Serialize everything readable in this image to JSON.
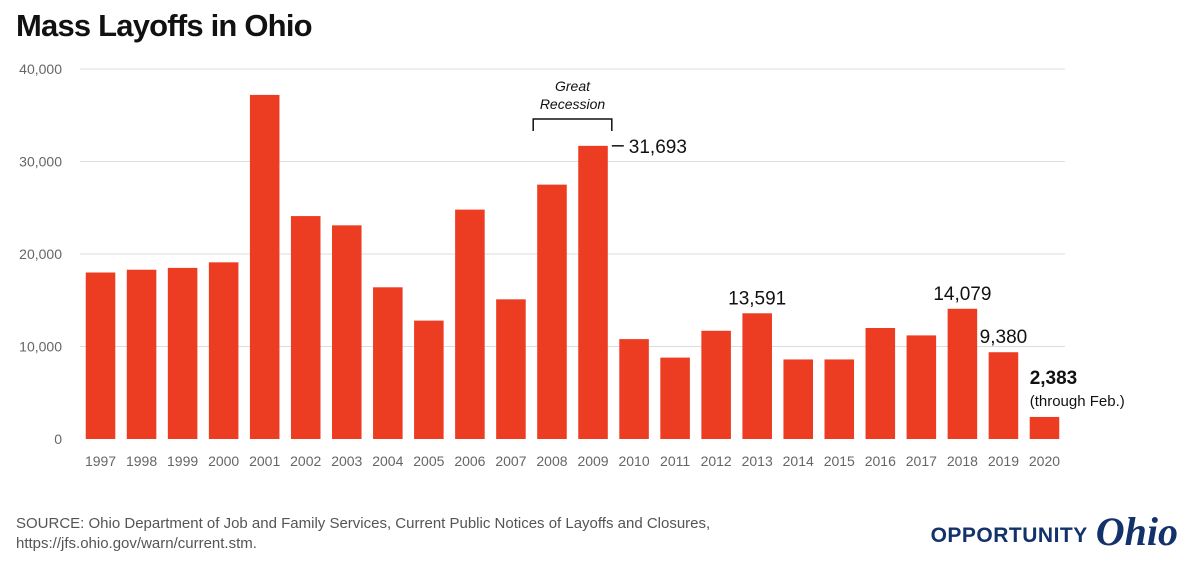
{
  "chart_data": {
    "type": "bar",
    "title": "Mass Layoffs in Ohio",
    "categories": [
      "1997",
      "1998",
      "1999",
      "2000",
      "2001",
      "2002",
      "2003",
      "2004",
      "2005",
      "2006",
      "2007",
      "2008",
      "2009",
      "2010",
      "2011",
      "2012",
      "2013",
      "2014",
      "2015",
      "2016",
      "2017",
      "2018",
      "2019",
      "2020"
    ],
    "values": [
      18000,
      18300,
      18500,
      19100,
      37200,
      24100,
      23100,
      16400,
      12800,
      24800,
      15100,
      27500,
      31693,
      10800,
      8800,
      11700,
      13591,
      8600,
      8600,
      12000,
      11200,
      14079,
      9380,
      2383
    ],
    "ylim": [
      0,
      40000
    ],
    "yticks": [
      0,
      10000,
      20000,
      30000,
      40000
    ],
    "ytick_labels": [
      "0",
      "10,000",
      "20,000",
      "30,000",
      "40,000"
    ],
    "grid": true,
    "bar_color": "#ec3d22",
    "data_labels": [
      {
        "category": "2009",
        "text": "31,693",
        "bold": false,
        "leader": true
      },
      {
        "category": "2013",
        "text": "13,591",
        "bold": false,
        "leader": false
      },
      {
        "category": "2018",
        "text": "14,079",
        "bold": false,
        "leader": false
      },
      {
        "category": "2019",
        "text": "9,380",
        "bold": false,
        "leader": false
      },
      {
        "category": "2020",
        "text": "2,383",
        "bold": true,
        "leader": false,
        "note": "(through Feb.)"
      }
    ],
    "annotation": {
      "lines": [
        "Great",
        "Recession"
      ],
      "from": "2008",
      "to": "2009"
    }
  },
  "source": {
    "line1": "SOURCE: Ohio Department of Job and Family Services, Current Public Notices of Layoffs and Closures,",
    "line2": "https://jfs.ohio.gov/warn/current.stm."
  },
  "logo": {
    "word": "OPPORTUNITY",
    "script": "Ohio",
    "color": "#13316b"
  }
}
